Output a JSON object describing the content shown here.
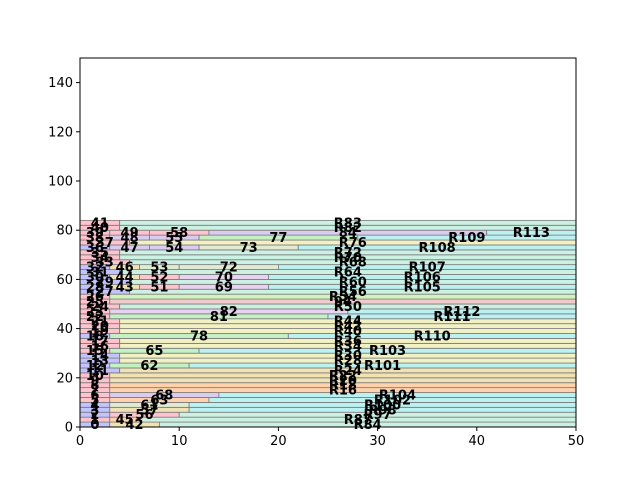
{
  "chart_data": {
    "type": "bar",
    "orientation": "horizontal-stacked",
    "title": "",
    "xlabel": "",
    "ylabel": "",
    "xlim": [
      0,
      50
    ],
    "ylim": [
      0,
      150
    ],
    "grid": false,
    "legend": "none",
    "xticks": [
      0,
      10,
      20,
      30,
      40,
      50
    ],
    "yticks": [
      0,
      20,
      40,
      60,
      80,
      100,
      120,
      140
    ],
    "colors": {
      "a": "#ffc0cb",
      "b": "#c0c0ff",
      "c": "#f0e0b0",
      "d": "#c0f0c0",
      "e": "#b8f0f0",
      "f": "#ffd0a8",
      "g": "#e8d0f0",
      "h": "#e0ead0",
      "i": "#d0f0b8",
      "j": "#c8f0e0",
      "k": "#f0f0c0",
      "l": "#d8c8f0",
      "m": "#f0c8c8"
    },
    "rows": [
      {
        "y": 0,
        "segments": [
          {
            "label": "0",
            "start": 0,
            "end": 3,
            "color": "b"
          },
          {
            "label": "42",
            "start": 3,
            "end": 8,
            "color": "c"
          },
          {
            "label": "R84",
            "start": 8,
            "end": 50,
            "color": "j"
          }
        ]
      },
      {
        "y": 2,
        "segments": [
          {
            "label": "1",
            "start": 0,
            "end": 3,
            "color": "a"
          },
          {
            "label": "45",
            "start": 3,
            "end": 6,
            "color": "f"
          },
          {
            "label": "R87",
            "start": 6,
            "end": 50,
            "color": "j"
          }
        ]
      },
      {
        "y": 4,
        "segments": [
          {
            "label": "2",
            "start": 0,
            "end": 3,
            "color": "b"
          },
          {
            "label": "56",
            "start": 3,
            "end": 10,
            "color": "a"
          },
          {
            "label": "R97",
            "start": 10,
            "end": 50,
            "color": "j"
          }
        ]
      },
      {
        "y": 6,
        "segments": [
          {
            "label": "3",
            "start": 0,
            "end": 3,
            "color": "b"
          },
          {
            "label": "57",
            "start": 3,
            "end": 11,
            "color": "c"
          },
          {
            "label": "R98",
            "start": 11,
            "end": 50,
            "color": "e"
          }
        ]
      },
      {
        "y": 8,
        "segments": [
          {
            "label": "4",
            "start": 0,
            "end": 3,
            "color": "b"
          },
          {
            "label": "61",
            "start": 3,
            "end": 11,
            "color": "h"
          },
          {
            "label": "R100",
            "start": 11,
            "end": 50,
            "color": "e"
          }
        ]
      },
      {
        "y": 10,
        "segments": [
          {
            "label": "5",
            "start": 0,
            "end": 3,
            "color": "a"
          },
          {
            "label": "63",
            "start": 3,
            "end": 13,
            "color": "f"
          },
          {
            "label": "R102",
            "start": 13,
            "end": 50,
            "color": "e"
          }
        ]
      },
      {
        "y": 12,
        "segments": [
          {
            "label": "6",
            "start": 0,
            "end": 3,
            "color": "a"
          },
          {
            "label": "68",
            "start": 3,
            "end": 14,
            "color": "l"
          },
          {
            "label": "R104",
            "start": 14,
            "end": 50,
            "color": "e"
          }
        ]
      },
      {
        "y": 14,
        "segments": [
          {
            "label": "7",
            "start": 0,
            "end": 3,
            "color": "a"
          },
          {
            "label": "R16",
            "start": 3,
            "end": 50,
            "color": "f"
          }
        ]
      },
      {
        "y": 16,
        "segments": [
          {
            "label": "8",
            "start": 0,
            "end": 3,
            "color": "a"
          },
          {
            "label": "R18",
            "start": 3,
            "end": 50,
            "color": "f"
          }
        ]
      },
      {
        "y": 18,
        "segments": [
          {
            "label": "9",
            "start": 0,
            "end": 3,
            "color": "a"
          },
          {
            "label": "R20",
            "start": 3,
            "end": 50,
            "color": "c"
          }
        ]
      },
      {
        "y": 20,
        "segments": [
          {
            "label": "10",
            "start": 0,
            "end": 3,
            "color": "a"
          },
          {
            "label": "R22",
            "start": 3,
            "end": 50,
            "color": "c"
          }
        ]
      },
      {
        "y": 22,
        "segments": [
          {
            "label": "11",
            "start": 0,
            "end": 4,
            "color": "b"
          },
          {
            "label": "R24",
            "start": 4,
            "end": 50,
            "color": "c"
          }
        ]
      },
      {
        "y": 24,
        "segments": [
          {
            "label": "12",
            "start": 0,
            "end": 3,
            "color": "b"
          },
          {
            "label": "62",
            "start": 3,
            "end": 11,
            "color": "d"
          },
          {
            "label": "R101",
            "start": 11,
            "end": 50,
            "color": "e"
          }
        ]
      },
      {
        "y": 26,
        "segments": [
          {
            "label": "13",
            "start": 0,
            "end": 4,
            "color": "b"
          },
          {
            "label": "R28",
            "start": 4,
            "end": 50,
            "color": "k"
          }
        ]
      },
      {
        "y": 28,
        "segments": [
          {
            "label": "14",
            "start": 0,
            "end": 4,
            "color": "b"
          },
          {
            "label": "R30",
            "start": 4,
            "end": 50,
            "color": "k"
          }
        ]
      },
      {
        "y": 30,
        "segments": [
          {
            "label": "15",
            "start": 0,
            "end": 3,
            "color": "a"
          },
          {
            "label": "65",
            "start": 3,
            "end": 12,
            "color": "d"
          },
          {
            "label": "R103",
            "start": 12,
            "end": 50,
            "color": "e"
          }
        ]
      },
      {
        "y": 32,
        "segments": [
          {
            "label": "16",
            "start": 0,
            "end": 4,
            "color": "a"
          },
          {
            "label": "R34",
            "start": 4,
            "end": 50,
            "color": "k"
          }
        ]
      },
      {
        "y": 34,
        "segments": [
          {
            "label": "17",
            "start": 0,
            "end": 4,
            "color": "a"
          },
          {
            "label": "R36",
            "start": 4,
            "end": 50,
            "color": "k"
          }
        ]
      },
      {
        "y": 36,
        "segments": [
          {
            "label": "18",
            "start": 0,
            "end": 3,
            "color": "b"
          },
          {
            "label": "78",
            "start": 3,
            "end": 21,
            "color": "d"
          },
          {
            "label": "R110",
            "start": 21,
            "end": 50,
            "color": "e"
          }
        ]
      },
      {
        "y": 38,
        "segments": [
          {
            "label": "19",
            "start": 0,
            "end": 4,
            "color": "a"
          },
          {
            "label": "R40",
            "start": 4,
            "end": 50,
            "color": "k"
          }
        ]
      },
      {
        "y": 40,
        "segments": [
          {
            "label": "20",
            "start": 0,
            "end": 4,
            "color": "a"
          },
          {
            "label": "R42",
            "start": 4,
            "end": 50,
            "color": "k"
          }
        ]
      },
      {
        "y": 42,
        "segments": [
          {
            "label": "21",
            "start": 0,
            "end": 4,
            "color": "a"
          },
          {
            "label": "R44",
            "start": 4,
            "end": 50,
            "color": "k"
          }
        ]
      },
      {
        "y": 44,
        "segments": [
          {
            "label": "22",
            "start": 0,
            "end": 3,
            "color": "a"
          },
          {
            "label": "81",
            "start": 3,
            "end": 25,
            "color": "d"
          },
          {
            "label": "R111",
            "start": 25,
            "end": 50,
            "color": "e"
          }
        ]
      },
      {
        "y": 46,
        "segments": [
          {
            "label": "23",
            "start": 0,
            "end": 3,
            "color": "a"
          },
          {
            "label": "82",
            "start": 3,
            "end": 27,
            "color": "g"
          },
          {
            "label": "R112",
            "start": 27,
            "end": 50,
            "color": "e"
          }
        ]
      },
      {
        "y": 48,
        "segments": [
          {
            "label": "24",
            "start": 0,
            "end": 4,
            "color": "a"
          },
          {
            "label": "R50",
            "start": 4,
            "end": 50,
            "color": "j"
          }
        ]
      },
      {
        "y": 50,
        "segments": [
          {
            "label": "25",
            "start": 0,
            "end": 3,
            "color": "a"
          },
          {
            "label": "94",
            "start": 3,
            "end": 50,
            "color": "m"
          }
        ]
      },
      {
        "y": 52,
        "segments": [
          {
            "label": "26",
            "start": 0,
            "end": 3,
            "color": "a"
          },
          {
            "label": "R54",
            "start": 3,
            "end": 50,
            "color": "i"
          }
        ]
      },
      {
        "y": 54,
        "segments": [
          {
            "label": "27",
            "start": 0,
            "end": 5,
            "color": "b"
          },
          {
            "label": "R56",
            "start": 5,
            "end": 50,
            "color": "j"
          }
        ]
      },
      {
        "y": 56,
        "segments": [
          {
            "label": "28",
            "start": 0,
            "end": 3,
            "color": "b"
          },
          {
            "label": "43",
            "start": 3,
            "end": 6,
            "color": "c"
          },
          {
            "label": "51",
            "start": 6,
            "end": 10,
            "color": "a"
          },
          {
            "label": "69",
            "start": 10,
            "end": 19,
            "color": "g"
          },
          {
            "label": "R105",
            "start": 19,
            "end": 50,
            "color": "e"
          }
        ]
      },
      {
        "y": 58,
        "segments": [
          {
            "label": "29",
            "start": 0,
            "end": 5,
            "color": "b"
          },
          {
            "label": "R60",
            "start": 5,
            "end": 50,
            "color": "j"
          }
        ]
      },
      {
        "y": 60,
        "segments": [
          {
            "label": "30",
            "start": 0,
            "end": 3,
            "color": "b"
          },
          {
            "label": "44",
            "start": 3,
            "end": 6,
            "color": "c"
          },
          {
            "label": "52",
            "start": 6,
            "end": 10,
            "color": "a"
          },
          {
            "label": "70",
            "start": 10,
            "end": 19,
            "color": "g"
          },
          {
            "label": "R106",
            "start": 19,
            "end": 50,
            "color": "e"
          }
        ]
      },
      {
        "y": 62,
        "segments": [
          {
            "label": "31",
            "start": 0,
            "end": 4,
            "color": "b"
          },
          {
            "label": "R64",
            "start": 4,
            "end": 50,
            "color": "j"
          }
        ]
      },
      {
        "y": 64,
        "segments": [
          {
            "label": "32",
            "start": 0,
            "end": 3,
            "color": "b"
          },
          {
            "label": "46",
            "start": 3,
            "end": 6,
            "color": "c"
          },
          {
            "label": "53",
            "start": 6,
            "end": 10,
            "color": "h"
          },
          {
            "label": "72",
            "start": 10,
            "end": 20,
            "color": "h"
          },
          {
            "label": "R107",
            "start": 20,
            "end": 50,
            "color": "e"
          }
        ]
      },
      {
        "y": 66,
        "segments": [
          {
            "label": "33",
            "start": 0,
            "end": 5,
            "color": "a"
          },
          {
            "label": "R68",
            "start": 5,
            "end": 50,
            "color": "j"
          }
        ]
      },
      {
        "y": 68,
        "segments": [
          {
            "label": "34",
            "start": 0,
            "end": 4,
            "color": "a"
          },
          {
            "label": "R70",
            "start": 4,
            "end": 50,
            "color": "j"
          }
        ]
      },
      {
        "y": 70,
        "segments": [
          {
            "label": "35",
            "start": 0,
            "end": 4,
            "color": "a"
          },
          {
            "label": "R72",
            "start": 4,
            "end": 50,
            "color": "j"
          }
        ]
      },
      {
        "y": 72,
        "segments": [
          {
            "label": "36",
            "start": 0,
            "end": 3,
            "color": "b"
          },
          {
            "label": "47",
            "start": 3,
            "end": 7,
            "color": "l"
          },
          {
            "label": "54",
            "start": 7,
            "end": 12,
            "color": "l"
          },
          {
            "label": "73",
            "start": 12,
            "end": 22,
            "color": "h"
          },
          {
            "label": "R108",
            "start": 22,
            "end": 50,
            "color": "e"
          }
        ]
      },
      {
        "y": 74,
        "segments": [
          {
            "label": "37",
            "start": 0,
            "end": 5,
            "color": "a"
          },
          {
            "label": "R76",
            "start": 5,
            "end": 50,
            "color": "k"
          }
        ]
      },
      {
        "y": 76,
        "segments": [
          {
            "label": "38",
            "start": 0,
            "end": 3,
            "color": "a"
          },
          {
            "label": "48",
            "start": 3,
            "end": 7,
            "color": "l"
          },
          {
            "label": "55",
            "start": 7,
            "end": 12,
            "color": "l"
          },
          {
            "label": "77",
            "start": 12,
            "end": 28,
            "color": "d"
          },
          {
            "label": "R109",
            "start": 28,
            "end": 50,
            "color": "e"
          }
        ]
      },
      {
        "y": 78,
        "segments": [
          {
            "label": "39",
            "start": 0,
            "end": 3,
            "color": "a"
          },
          {
            "label": "49",
            "start": 3,
            "end": 7,
            "color": "a"
          },
          {
            "label": "58",
            "start": 7,
            "end": 13,
            "color": "a"
          },
          {
            "label": "84",
            "start": 13,
            "end": 41,
            "color": "l"
          },
          {
            "label": "R113",
            "start": 41,
            "end": 50,
            "color": "e"
          }
        ]
      },
      {
        "y": 80,
        "segments": [
          {
            "label": "40",
            "start": 0,
            "end": 4,
            "color": "a"
          },
          {
            "label": "R82",
            "start": 4,
            "end": 50,
            "color": "j"
          }
        ]
      },
      {
        "y": 82,
        "segments": [
          {
            "label": "41",
            "start": 0,
            "end": 4,
            "color": "a"
          },
          {
            "label": "R83",
            "start": 4,
            "end": 50,
            "color": "j"
          }
        ]
      }
    ]
  }
}
